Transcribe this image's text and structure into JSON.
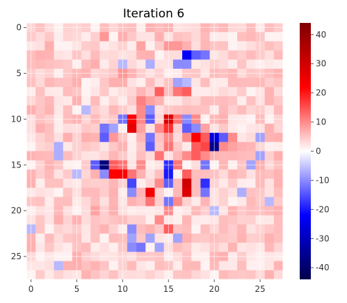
{
  "chart_data": {
    "type": "heatmap",
    "title": "Iteration 6",
    "rows": 28,
    "cols": 28,
    "x_ticks": [
      0,
      5,
      10,
      15,
      20,
      25
    ],
    "y_ticks": [
      0,
      5,
      10,
      15,
      20,
      25
    ],
    "grid": true,
    "colormap": "seismic",
    "vmin": -44,
    "vmax": 44,
    "colorbar_ticks": [
      -40,
      -30,
      -20,
      -10,
      0,
      10,
      20,
      30,
      40
    ],
    "colorbar_placement": "right",
    "background_level": 4,
    "noise_amplitude": 3,
    "noise_seed": 6,
    "cells": [
      {
        "r": 7,
        "c": 14,
        "v": 14
      },
      {
        "r": 7,
        "c": 16,
        "v": 12
      },
      {
        "r": 7,
        "c": 17,
        "v": 14
      },
      {
        "r": 6,
        "c": 16,
        "v": -8
      },
      {
        "r": 6,
        "c": 17,
        "v": -6
      },
      {
        "r": 3,
        "c": 17,
        "v": -22
      },
      {
        "r": 3,
        "c": 18,
        "v": -14
      },
      {
        "r": 3,
        "c": 19,
        "v": -12
      },
      {
        "r": 2,
        "c": 15,
        "v": 9
      },
      {
        "r": 2,
        "c": 16,
        "v": 9
      },
      {
        "r": 5,
        "c": 10,
        "v": 9
      },
      {
        "r": 8,
        "c": 12,
        "v": 11
      },
      {
        "r": 8,
        "c": 13,
        "v": 8
      },
      {
        "r": 9,
        "c": 12,
        "v": 10
      },
      {
        "r": 9,
        "c": 13,
        "v": -10
      },
      {
        "r": 10,
        "c": 10,
        "v": -12
      },
      {
        "r": 10,
        "c": 11,
        "v": 22
      },
      {
        "r": 10,
        "c": 12,
        "v": 10
      },
      {
        "r": 10,
        "c": 13,
        "v": -14
      },
      {
        "r": 10,
        "c": 15,
        "v": 28
      },
      {
        "r": 10,
        "c": 16,
        "v": 12
      },
      {
        "r": 10,
        "c": 17,
        "v": -10
      },
      {
        "r": 10,
        "c": 18,
        "v": 10
      },
      {
        "r": 11,
        "c": 8,
        "v": -12
      },
      {
        "r": 11,
        "c": 9,
        "v": -8
      },
      {
        "r": 11,
        "c": 11,
        "v": 26
      },
      {
        "r": 11,
        "c": 12,
        "v": 8
      },
      {
        "r": 11,
        "c": 14,
        "v": 10
      },
      {
        "r": 11,
        "c": 15,
        "v": 18
      },
      {
        "r": 11,
        "c": 17,
        "v": -14
      },
      {
        "r": 11,
        "c": 18,
        "v": -10
      },
      {
        "r": 11,
        "c": 19,
        "v": 8
      },
      {
        "r": 12,
        "c": 8,
        "v": -14
      },
      {
        "r": 12,
        "c": 9,
        "v": 9
      },
      {
        "r": 12,
        "c": 13,
        "v": -12
      },
      {
        "r": 12,
        "c": 15,
        "v": 10
      },
      {
        "r": 12,
        "c": 17,
        "v": 10
      },
      {
        "r": 12,
        "c": 18,
        "v": 22
      },
      {
        "r": 12,
        "c": 19,
        "v": 14
      },
      {
        "r": 12,
        "c": 20,
        "v": -26
      },
      {
        "r": 12,
        "c": 21,
        "v": -14
      },
      {
        "r": 12,
        "c": 22,
        "v": 10
      },
      {
        "r": 13,
        "c": 13,
        "v": -14
      },
      {
        "r": 13,
        "c": 15,
        "v": 12
      },
      {
        "r": 13,
        "c": 18,
        "v": 14
      },
      {
        "r": 13,
        "c": 19,
        "v": 16
      },
      {
        "r": 13,
        "c": 20,
        "v": -36
      },
      {
        "r": 13,
        "c": 21,
        "v": 10
      },
      {
        "r": 13,
        "c": 22,
        "v": 8
      },
      {
        "r": 14,
        "c": 14,
        "v": 12
      },
      {
        "r": 14,
        "c": 17,
        "v": 10
      },
      {
        "r": 14,
        "c": 18,
        "v": 14
      },
      {
        "r": 14,
        "c": 19,
        "v": 10
      },
      {
        "r": 15,
        "c": 7,
        "v": -14
      },
      {
        "r": 15,
        "c": 8,
        "v": -38
      },
      {
        "r": 15,
        "c": 9,
        "v": 14
      },
      {
        "r": 15,
        "c": 10,
        "v": 12
      },
      {
        "r": 15,
        "c": 12,
        "v": 10
      },
      {
        "r": 15,
        "c": 15,
        "v": -18
      },
      {
        "r": 15,
        "c": 16,
        "v": 12
      },
      {
        "r": 15,
        "c": 19,
        "v": -12
      },
      {
        "r": 16,
        "c": 8,
        "v": -10
      },
      {
        "r": 16,
        "c": 9,
        "v": 22
      },
      {
        "r": 16,
        "c": 10,
        "v": 22
      },
      {
        "r": 16,
        "c": 11,
        "v": 12
      },
      {
        "r": 16,
        "c": 15,
        "v": -20
      },
      {
        "r": 16,
        "c": 17,
        "v": 14
      },
      {
        "r": 17,
        "c": 11,
        "v": -16
      },
      {
        "r": 17,
        "c": 14,
        "v": 10
      },
      {
        "r": 17,
        "c": 15,
        "v": -14
      },
      {
        "r": 17,
        "c": 17,
        "v": 30
      },
      {
        "r": 17,
        "c": 19,
        "v": -18
      },
      {
        "r": 18,
        "c": 11,
        "v": -10
      },
      {
        "r": 18,
        "c": 13,
        "v": 24
      },
      {
        "r": 18,
        "c": 17,
        "v": 28
      },
      {
        "r": 18,
        "c": 19,
        "v": -12
      },
      {
        "r": 19,
        "c": 13,
        "v": 12
      },
      {
        "r": 19,
        "c": 15,
        "v": -12
      },
      {
        "r": 19,
        "c": 16,
        "v": 10
      },
      {
        "r": 20,
        "c": 15,
        "v": 10
      },
      {
        "r": 21,
        "c": 14,
        "v": 10
      },
      {
        "r": 22,
        "c": 11,
        "v": -10
      },
      {
        "r": 22,
        "c": 15,
        "v": 14
      },
      {
        "r": 23,
        "c": 11,
        "v": -8
      },
      {
        "r": 23,
        "c": 13,
        "v": -8
      },
      {
        "r": 23,
        "c": 16,
        "v": -8
      },
      {
        "r": 24,
        "c": 11,
        "v": -10
      },
      {
        "r": 24,
        "c": 12,
        "v": -12
      },
      {
        "r": 24,
        "c": 14,
        "v": -8
      },
      {
        "r": 1,
        "c": 8,
        "v": 9
      },
      {
        "r": 2,
        "c": 12,
        "v": 8
      },
      {
        "r": 4,
        "c": 10,
        "v": -6
      },
      {
        "r": 4,
        "c": 16,
        "v": -10
      },
      {
        "r": 4,
        "c": 17,
        "v": -10
      },
      {
        "r": 4,
        "c": 13,
        "v": -7
      },
      {
        "r": 9,
        "c": 6,
        "v": -6
      },
      {
        "r": 13,
        "c": 3,
        "v": -7
      },
      {
        "r": 14,
        "c": 3,
        "v": -7
      },
      {
        "r": 15,
        "c": 24,
        "v": -8
      },
      {
        "r": 18,
        "c": 23,
        "v": -7
      },
      {
        "r": 19,
        "c": 26,
        "v": -6
      },
      {
        "r": 20,
        "c": 20,
        "v": -6
      },
      {
        "r": 22,
        "c": 0,
        "v": -6
      },
      {
        "r": 26,
        "c": 3,
        "v": -6
      },
      {
        "r": 12,
        "c": 25,
        "v": -8
      },
      {
        "r": 14,
        "c": 25,
        "v": -8
      },
      {
        "r": 16,
        "c": 5,
        "v": -6
      },
      {
        "r": 6,
        "c": 25,
        "v": 6
      },
      {
        "r": 20,
        "c": 7,
        "v": 8
      },
      {
        "r": 26,
        "c": 17,
        "v": 6
      }
    ]
  }
}
